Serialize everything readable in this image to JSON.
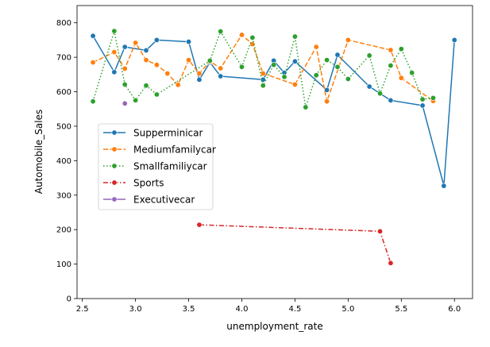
{
  "chart_data": {
    "type": "line",
    "title": "",
    "xlabel": "unemployment_rate",
    "ylabel": "Automobile_Sales",
    "xlim": [
      2.45,
      6.17
    ],
    "ylim": [
      0,
      850
    ],
    "xticks": [
      "2.5",
      "3.0",
      "3.5",
      "4.0",
      "4.5",
      "5.0",
      "5.5",
      "6.0"
    ],
    "xtick_values": [
      2.5,
      3.0,
      3.5,
      4.0,
      4.5,
      5.0,
      5.5,
      6.0
    ],
    "yticks": [
      "0",
      "100",
      "200",
      "300",
      "400",
      "500",
      "600",
      "700",
      "800"
    ],
    "ytick_values": [
      0,
      100,
      200,
      300,
      400,
      500,
      600,
      700,
      800
    ],
    "grid": false,
    "legend_position": "center-left",
    "series": [
      {
        "name": "Supperminicar",
        "color": "#1f77b4",
        "linestyle": "solid",
        "x": [
          2.6,
          2.8,
          2.9,
          3.1,
          3.2,
          3.5,
          3.6,
          3.7,
          3.8,
          4.2,
          4.3,
          4.4,
          4.5,
          4.8,
          4.9,
          5.2,
          5.4,
          5.7,
          5.9,
          6.0
        ],
        "y": [
          762,
          657,
          730,
          720,
          750,
          745,
          635,
          685,
          645,
          635,
          690,
          655,
          688,
          605,
          707,
          615,
          575,
          560,
          327,
          750
        ]
      },
      {
        "name": "Mediumfamilycar",
        "color": "#ff7f0e",
        "linestyle": "dashed",
        "x": [
          2.6,
          2.8,
          2.9,
          3.0,
          3.1,
          3.2,
          3.3,
          3.4,
          3.5,
          3.6,
          3.7,
          3.8,
          4.0,
          4.1,
          4.2,
          4.5,
          4.7,
          4.8,
          5.0,
          5.4,
          5.5,
          5.8
        ],
        "y": [
          685,
          715,
          667,
          742,
          692,
          678,
          653,
          620,
          692,
          653,
          688,
          668,
          765,
          738,
          653,
          621,
          730,
          572,
          750,
          721,
          640,
          573
        ]
      },
      {
        "name": "Smallfamiliycar",
        "color": "#2ca02c",
        "linestyle": "dotted",
        "x": [
          2.6,
          2.8,
          2.9,
          3.0,
          3.1,
          3.2,
          3.7,
          3.8,
          4.0,
          4.1,
          4.2,
          4.3,
          4.4,
          4.5,
          4.6,
          4.7,
          4.8,
          4.9,
          5.0,
          5.2,
          5.3,
          5.4,
          5.5,
          5.6,
          5.7,
          5.8
        ],
        "y": [
          572,
          776,
          621,
          575,
          618,
          592,
          690,
          775,
          672,
          757,
          618,
          678,
          643,
          760,
          555,
          648,
          692,
          672,
          637,
          705,
          595,
          676,
          724,
          655,
          578,
          582
        ]
      },
      {
        "name": "Sports",
        "color": "#d62728",
        "linestyle": "dashdot",
        "x": [
          3.6,
          5.3,
          5.4
        ],
        "y": [
          214,
          195,
          103
        ]
      },
      {
        "name": "Executivecar",
        "color": "#9467bd",
        "linestyle": "solid",
        "x": [
          2.9
        ],
        "y": [
          566
        ]
      }
    ]
  }
}
